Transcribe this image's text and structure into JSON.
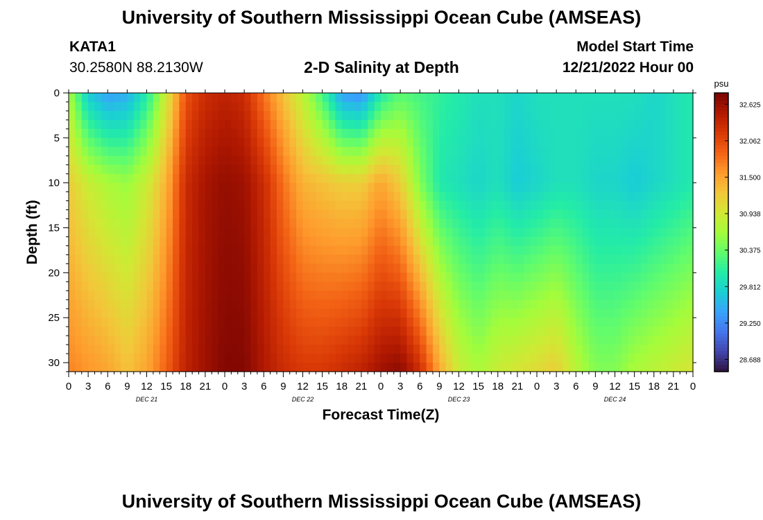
{
  "header": {
    "title": "University of Southern Mississippi Ocean Cube (AMSEAS)",
    "station": "KATA1",
    "coords": "30.2580N  88.2130W",
    "plot_title": "2-D Salinity at Depth",
    "model_start_label": "Model Start Time",
    "model_start_value": "12/21/2022 Hour 00"
  },
  "footer": {
    "title": "University of Southern Mississippi Ocean Cube (AMSEAS)"
  },
  "chart_data": {
    "type": "heatmap",
    "title": "2-D Salinity at Depth",
    "xlabel": "Forecast Time(Z)",
    "ylabel": "Depth (ft)",
    "x_tick_labels": [
      "0",
      "3",
      "6",
      "9",
      "12",
      "15",
      "18",
      "21",
      "0",
      "3",
      "6",
      "9",
      "12",
      "15",
      "18",
      "21",
      "0",
      "3",
      "6",
      "9",
      "12",
      "15",
      "18",
      "21",
      "0",
      "3",
      "6",
      "9",
      "12",
      "15",
      "18",
      "21",
      "0"
    ],
    "x_hours_range": [
      0,
      96
    ],
    "date_labels": [
      {
        "label": "DEC 21",
        "hour": 12
      },
      {
        "label": "DEC 22",
        "hour": 36
      },
      {
        "label": "DEC 23",
        "hour": 60
      },
      {
        "label": "DEC 24",
        "hour": 84
      }
    ],
    "y_ticks": [
      0,
      5,
      10,
      15,
      20,
      25,
      30
    ],
    "y_tick_labels": [
      "0",
      "5",
      "10",
      "15",
      "20",
      "25",
      "30"
    ],
    "ylim": [
      0,
      31
    ],
    "colorbar": {
      "unit": "psu",
      "tick_labels": [
        "32.625",
        "32.062",
        "31.500",
        "30.938",
        "30.375",
        "29.812",
        "29.250",
        "28.688"
      ],
      "tick_values": [
        32.625,
        32.062,
        31.5,
        30.938,
        30.375,
        29.812,
        29.25,
        28.688
      ],
      "range": [
        28.5,
        32.8
      ],
      "stops": [
        "#30123b",
        "#4145ab",
        "#4675ed",
        "#39a2fc",
        "#1bcfd4",
        "#24eca6",
        "#61fc6c",
        "#a4fc3b",
        "#d1e834",
        "#f3c63a",
        "#fe9b2d",
        "#f36315",
        "#d93806",
        "#b11901",
        "#7a0402"
      ]
    },
    "salinity_profiles": [
      {
        "hour": 0,
        "surface": 30.7,
        "d10": 31.2,
        "bottom": 31.7
      },
      {
        "hour": 3,
        "surface": 29.7,
        "d10": 30.9,
        "bottom": 31.6
      },
      {
        "hour": 6,
        "surface": 29.4,
        "d10": 30.7,
        "bottom": 31.5
      },
      {
        "hour": 9,
        "surface": 29.5,
        "d10": 30.6,
        "bottom": 31.3
      },
      {
        "hour": 12,
        "surface": 30.0,
        "d10": 30.9,
        "bottom": 31.5
      },
      {
        "hour": 15,
        "surface": 30.9,
        "d10": 31.4,
        "bottom": 31.9
      },
      {
        "hour": 18,
        "surface": 32.0,
        "d10": 32.3,
        "bottom": 32.4
      },
      {
        "hour": 21,
        "surface": 32.3,
        "d10": 32.55,
        "bottom": 32.6
      },
      {
        "hour": 24,
        "surface": 32.4,
        "d10": 32.65,
        "bottom": 32.75
      },
      {
        "hour": 27,
        "surface": 32.3,
        "d10": 32.6,
        "bottom": 32.75
      },
      {
        "hour": 30,
        "surface": 31.8,
        "d10": 32.3,
        "bottom": 32.5
      },
      {
        "hour": 33,
        "surface": 31.3,
        "d10": 31.8,
        "bottom": 32.3
      },
      {
        "hour": 36,
        "surface": 30.8,
        "d10": 31.4,
        "bottom": 32.2
      },
      {
        "hour": 39,
        "surface": 30.2,
        "d10": 31.3,
        "bottom": 32.2
      },
      {
        "hour": 42,
        "surface": 29.4,
        "d10": 31.2,
        "bottom": 32.3
      },
      {
        "hour": 45,
        "surface": 29.3,
        "d10": 31.2,
        "bottom": 32.4
      },
      {
        "hour": 48,
        "surface": 30.0,
        "d10": 31.5,
        "bottom": 32.6
      },
      {
        "hour": 51,
        "surface": 30.3,
        "d10": 31.2,
        "bottom": 32.7
      },
      {
        "hour": 54,
        "surface": 30.2,
        "d10": 30.5,
        "bottom": 32.3
      },
      {
        "hour": 57,
        "surface": 30.1,
        "d10": 30.0,
        "bottom": 31.5
      },
      {
        "hour": 60,
        "surface": 30.0,
        "d10": 29.9,
        "bottom": 30.9
      },
      {
        "hour": 63,
        "surface": 29.9,
        "d10": 29.8,
        "bottom": 30.7
      },
      {
        "hour": 66,
        "surface": 29.9,
        "d10": 29.9,
        "bottom": 30.9
      },
      {
        "hour": 69,
        "surface": 29.8,
        "d10": 29.7,
        "bottom": 31.0
      },
      {
        "hour": 72,
        "surface": 29.9,
        "d10": 29.8,
        "bottom": 31.1
      },
      {
        "hour": 75,
        "surface": 29.9,
        "d10": 29.9,
        "bottom": 31.2
      },
      {
        "hour": 78,
        "surface": 29.9,
        "d10": 29.9,
        "bottom": 30.8
      },
      {
        "hour": 81,
        "surface": 29.9,
        "d10": 29.8,
        "bottom": 30.5
      },
      {
        "hour": 84,
        "surface": 29.9,
        "d10": 29.8,
        "bottom": 30.5
      },
      {
        "hour": 87,
        "surface": 29.9,
        "d10": 29.7,
        "bottom": 30.7
      },
      {
        "hour": 90,
        "surface": 29.8,
        "d10": 29.8,
        "bottom": 30.8
      },
      {
        "hour": 93,
        "surface": 29.9,
        "d10": 29.9,
        "bottom": 30.9
      },
      {
        "hour": 96,
        "surface": 30.0,
        "d10": 30.0,
        "bottom": 31.0
      }
    ]
  }
}
